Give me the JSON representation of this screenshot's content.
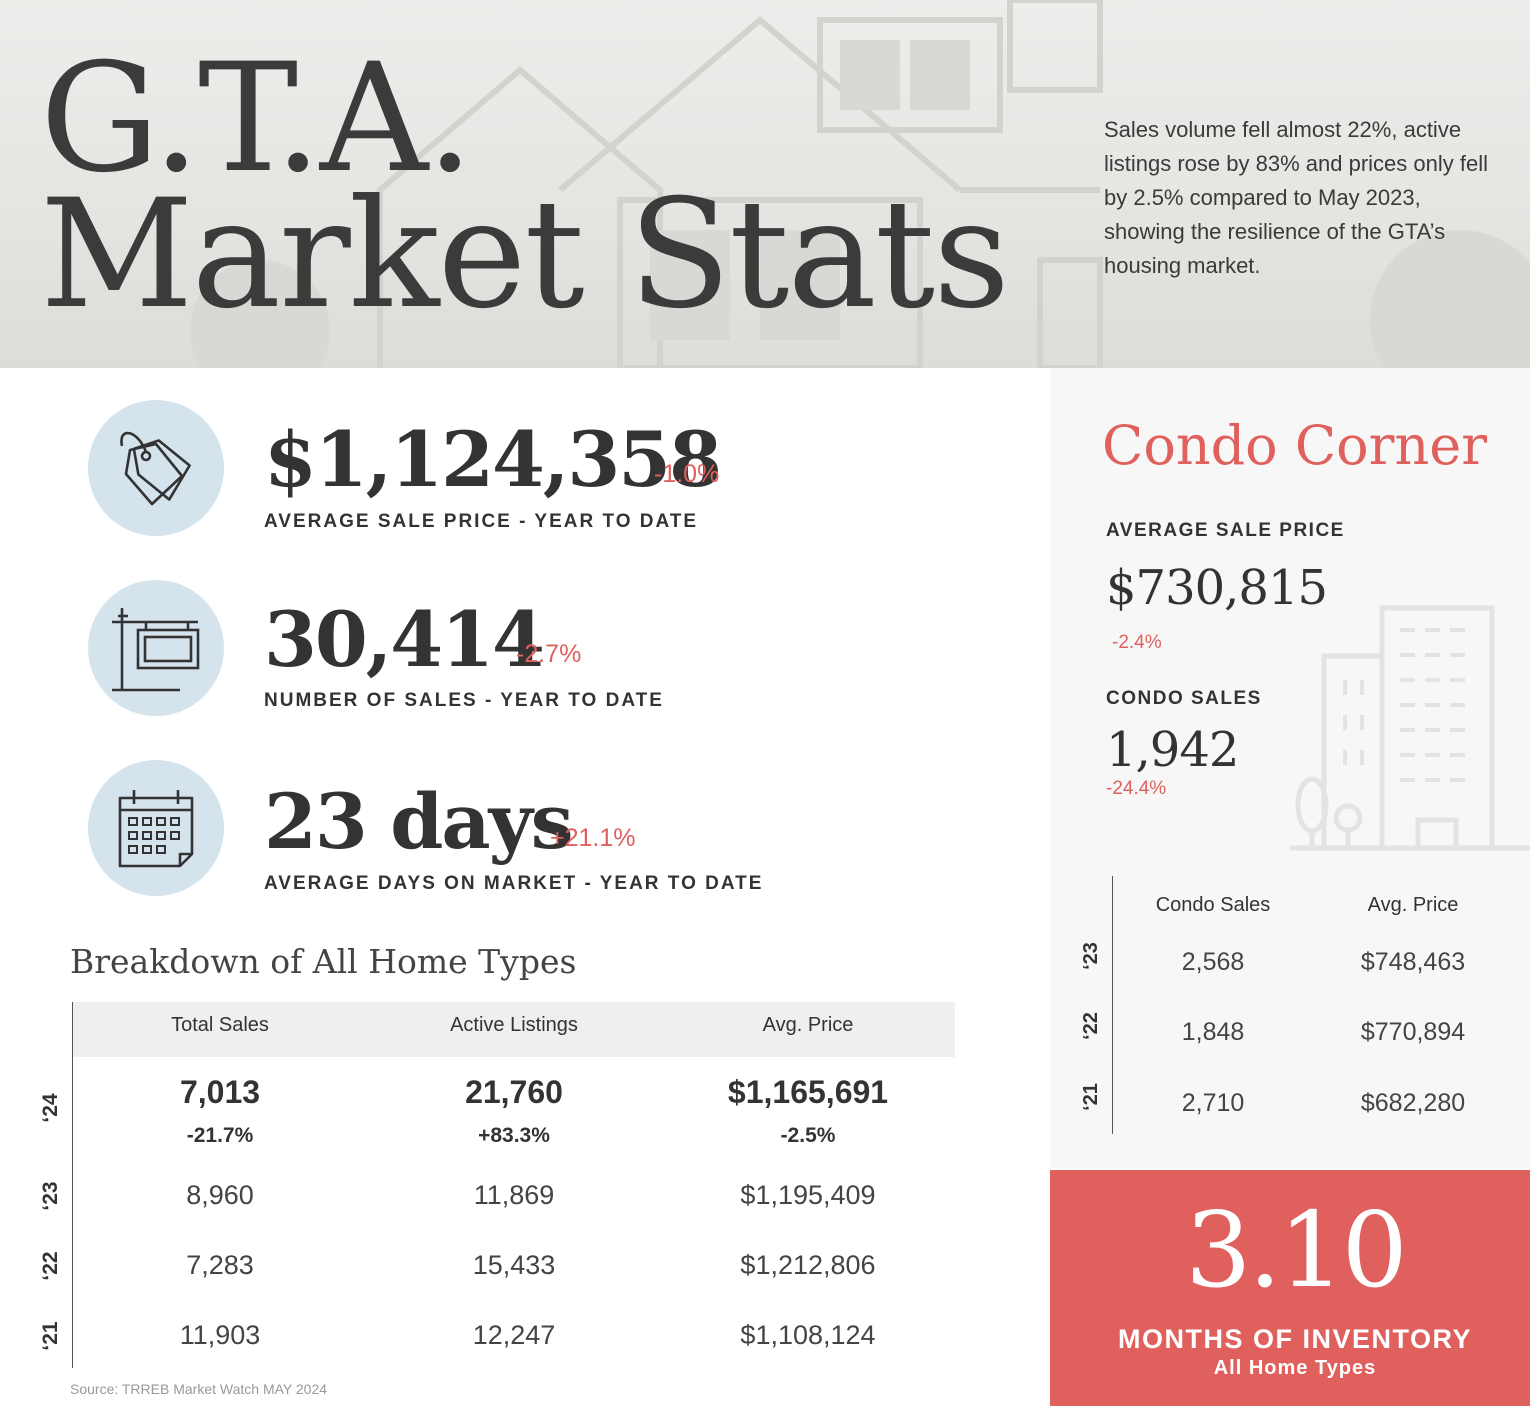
{
  "header": {
    "title_line1": "G.T.A.",
    "title_line2": "Market Stats",
    "intro": "Sales volume fell almost 22%, active listings rose by 83% and prices only fell by 2.5% compared to May 2023, showing the resilience of the GTA’s housing market."
  },
  "kpis": [
    {
      "icon": "price-tag-icon",
      "value": "$1,124,358",
      "change": "-1.0%",
      "label": "AVERAGE SALE PRICE - YEAR TO DATE"
    },
    {
      "icon": "for-sale-sign-icon",
      "value": "30,414",
      "change": "-2.7%",
      "label": "NUMBER OF SALES - YEAR TO DATE"
    },
    {
      "icon": "calendar-icon",
      "value": "23 days",
      "change": "+21.1%",
      "label": "AVERAGE DAYS ON MARKET - YEAR TO DATE"
    }
  ],
  "breakdown": {
    "title": "Breakdown of All Home Types",
    "columns": [
      "Total Sales",
      "Active Listings",
      "Avg. Price"
    ],
    "current": {
      "year": "‘24",
      "values": [
        "7,013",
        "21,760",
        "$1,165,691"
      ],
      "changes": [
        "-21.7%",
        "+83.3%",
        "-2.5%"
      ]
    },
    "rows": [
      {
        "year": "‘23",
        "values": [
          "8,960",
          "11,869",
          "$1,195,409"
        ]
      },
      {
        "year": "‘22",
        "values": [
          "7,283",
          "15,433",
          "$1,212,806"
        ]
      },
      {
        "year": "‘21",
        "values": [
          "11,903",
          "12,247",
          "$1,108,124"
        ]
      }
    ],
    "source": "Source: TRREB Market Watch MAY 2024"
  },
  "condo": {
    "title": "Condo Corner",
    "price_label": "AVERAGE SALE PRICE",
    "price_value": "$730,815",
    "price_change": "-2.4%",
    "sales_label": "CONDO SALES",
    "sales_value": "1,942",
    "sales_change": "-24.4%",
    "columns": [
      "Condo Sales",
      "Avg. Price"
    ],
    "rows": [
      {
        "year": "‘23",
        "values": [
          "2,568",
          "$748,463"
        ]
      },
      {
        "year": "‘22",
        "values": [
          "1,848",
          "$770,894"
        ]
      },
      {
        "year": "‘21",
        "values": [
          "2,710",
          "$682,280"
        ]
      }
    ]
  },
  "inventory": {
    "value": "3.10",
    "label": "MONTHS OF INVENTORY",
    "sublabel": "All Home Types"
  },
  "colors": {
    "accent": "#e0605e",
    "icon_circle": "#d4e3ec",
    "text": "#333333",
    "panel": "#f7f7f7"
  }
}
